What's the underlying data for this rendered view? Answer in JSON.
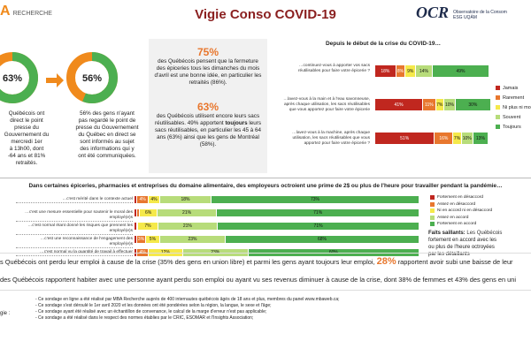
{
  "header": {
    "title": "Vigie Conso COVID-19",
    "logo_left": "RECHERCHE",
    "logo_left_mark": "A",
    "logo_right": "OCR",
    "logo_right_sub": [
      "Observatoire de la Consom",
      "ESG UQÀM"
    ]
  },
  "donuts": [
    {
      "value": 63,
      "value_label": "63%",
      "color": "#4caf50",
      "rest_color": "#f08a1c"
    },
    {
      "value": 56,
      "value_label": "56%",
      "color": "#4caf50",
      "rest_color": "#f08a1c"
    }
  ],
  "left_texts": [
    [
      "Québécois ont",
      "direct le point",
      "presse du",
      "Gouvernement du",
      "mercredi 1er",
      "à 13h00, dont",
      "-64 ans et 81%",
      "retraités."
    ],
    [
      "56% des gens n'ayant",
      "pas regardé le point de",
      "presse du Gouvernement",
      "du Québec en direct se",
      "sont informés au sujet",
      "des informations qui y",
      "ont été communiquées."
    ]
  ],
  "stats": [
    {
      "value_label": "75%",
      "text": [
        {
          "t": "des Québécois pensent que la fermeture des épiceries tous les dimanches du mois d'avril est une bonne idée, en particulier les retraités (86%)."
        }
      ]
    },
    {
      "value_label": "63%",
      "text": [
        {
          "t": "des Québécois utilisent encore leurs sacs réutilisables. 49% apportent "
        },
        {
          "t": "toujours",
          "bold": true
        },
        {
          "t": " leurs sacs réutilisables, en particulier les 45 à 64 ans (63%) ainsi que les gens de Montréal (58%)."
        }
      ]
    }
  ],
  "chart_sacs": {
    "type": "bar",
    "title": "Depuis le début de la crise du COVID-19…",
    "xlim": [
      0,
      100
    ],
    "categories": [
      "…continuez-vous à apporter vos sacs réutilisables pour faire votre épicerie ?",
      "…lavez-vous à la main et à l'eau savonneuse, après chaque utilisation, les sacs réutilisables que vous apportez pour faire votre épicerie",
      "…lavez-vous à la machine, après chaque utilisation, les sacs réutilisables que vous apportez pour faire votre épicerie ?"
    ],
    "series": [
      {
        "name": "Jamais",
        "color": "#c0271f",
        "values": [
          18,
          41,
          51
        ],
        "value_labels": [
          "18%",
          "41%",
          "51%"
        ]
      },
      {
        "name": "Rarement",
        "color": "#e8772e",
        "values": [
          8,
          11,
          16
        ],
        "value_labels": [
          "8%",
          "11%",
          "16%"
        ]
      },
      {
        "name": "Ni plus ni moins",
        "color": "#f5e94a",
        "values": [
          9,
          7,
          7
        ],
        "value_labels": [
          "9%",
          "7%",
          "7%"
        ]
      },
      {
        "name": "Souvent",
        "color": "#b7dc7a",
        "values": [
          14,
          10,
          10
        ],
        "value_labels": [
          "14%",
          "10%",
          "10%"
        ]
      },
      {
        "name": "Toujours",
        "color": "#4caf50",
        "values": [
          49,
          30,
          13
        ],
        "value_labels": [
          "49%",
          "30%",
          "13%"
        ]
      }
    ]
  },
  "chart_prime": {
    "type": "bar",
    "title": "Dans certaines épiceries, pharmacies et entreprises du domaine alimentaire, des employeurs octroient une prime de 2$ ou plus de l'heure pour travailler pendant la pandémie…",
    "xlim": [
      0,
      100
    ],
    "categories": [
      "…c'est mérité dans le contexte actuel",
      "…c'est une mesure essentielle pour soutenir le moral des employé(e)s",
      "…c'est normal étant donné les risques que prennent les employé(e)s",
      "…c'est une reconnaissance de l'engagement des employé(e)s",
      "…c'est normal vu la quantité de travail à effectuer"
    ],
    "series": [
      {
        "name": "Fortement en désaccord",
        "color": "#c0271f",
        "values": [
          1,
          1,
          1,
          1,
          1
        ],
        "value_labels": [
          null,
          null,
          null,
          null,
          null
        ]
      },
      {
        "name": "Assez en désaccord",
        "color": "#e8772e",
        "values": [
          4,
          1,
          0,
          3,
          4
        ],
        "value_labels": [
          "4%",
          null,
          null,
          "3%",
          "4%"
        ]
      },
      {
        "name": "Ni en accord ni en désaccord",
        "color": "#f5e94a",
        "values": [
          4,
          6,
          7,
          5,
          12
        ],
        "value_labels": [
          "4%",
          "6%",
          "7%",
          "5%",
          "12%"
        ]
      },
      {
        "name": "Assez en accord",
        "color": "#b7dc7a",
        "values": [
          18,
          21,
          21,
          23,
          23
        ],
        "value_labels": [
          "18%",
          "21%",
          "21%",
          "23%",
          "23%"
        ]
      },
      {
        "name": "Fortement en accord",
        "color": "#4caf50",
        "values": [
          73,
          71,
          71,
          68,
          60
        ],
        "value_labels": [
          "73%",
          "71%",
          "71%",
          "68%",
          "60%"
        ]
      }
    ]
  },
  "faits": {
    "label": "Faits saillants:",
    "lines": [
      " Les Québécois",
      "fortement en accord avec les",
      "ou plus de l'heure octroyées",
      "par les détaillants"
    ]
  },
  "findings": [
    [
      {
        "t": "s Québécois ont perdu leur emploi à cause de la crise (35% des gens en union libre) et parmi les gens ayant toujours leur emploi, "
      },
      {
        "t": "28%",
        "hl": true
      },
      {
        "t": " rapportent avoir subi une baisse de leur"
      }
    ],
    [
      {
        "t": "des Québécois rapportent habiter avec une personne ayant perdu son emploi ou ayant vu ses revenus diminuer à cause de la crise, dont 38% de femmes et 43% des gens en uni"
      }
    ]
  ],
  "methodology": {
    "label": "gie :",
    "items": [
      "Ce sondage en ligne a été réalisé par MBA Recherche auprès de 400 internautes québécois âgés de 18 ans et plus, membres du panel www.mbaweb.ca;",
      "Ce sondage s'est déroulé le 1er avril 2020 et les données ont été pondérées selon la région, la langue, le sexe et l'âge;",
      "Ce sondage ayant été réalisé avec un échantillon de convenance, le calcul de la marge d'erreur n'est pas applicable;",
      "Ce sondage a été réalisé dans le respect des normes établies par le CRIC, ESOMAR et l'Insights Association;"
    ]
  }
}
